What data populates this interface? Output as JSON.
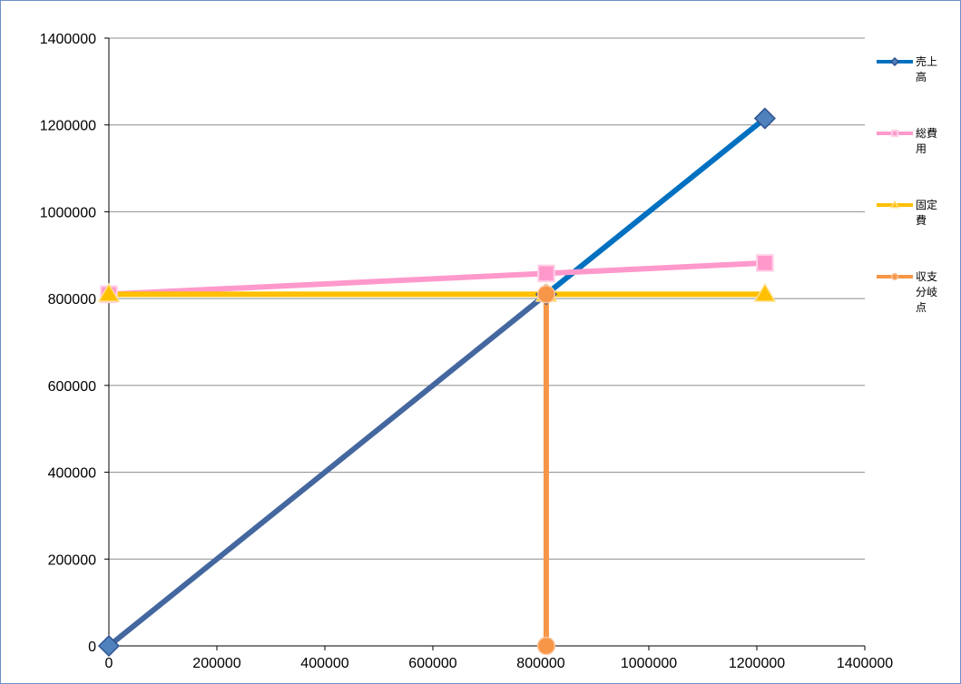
{
  "chart_data": {
    "type": "line",
    "xlim": [
      0,
      1400000
    ],
    "ylim": [
      0,
      1400000
    ],
    "x_ticks": [
      "0",
      "200000",
      "400000",
      "600000",
      "800000",
      "1000000",
      "1200000",
      "1400000"
    ],
    "y_ticks": [
      "0",
      "200000",
      "400000",
      "600000",
      "800000",
      "1000000",
      "1200000",
      "1400000"
    ],
    "grid": "horizontal",
    "legend_position": "right",
    "series": [
      {
        "name": "売上高",
        "marker": "diamond",
        "colors": {
          "start": "#44679f",
          "end": "#0070c0",
          "marker": "#4f81bd"
        },
        "points": [
          [
            0,
            0
          ],
          [
            810000,
            810000
          ],
          [
            1215000,
            1215000
          ]
        ]
      },
      {
        "name": "総費用",
        "marker": "square",
        "colors": {
          "start": "#ff99cc",
          "end": "#ff99cc",
          "marker": "#ff99cc"
        },
        "points": [
          [
            0,
            810000
          ],
          [
            810000,
            858000
          ],
          [
            1215000,
            882000
          ]
        ]
      },
      {
        "name": "固定費",
        "marker": "triangle",
        "colors": {
          "start": "#ffc000",
          "end": "#ffc000",
          "marker": "#ffc000"
        },
        "points": [
          [
            0,
            810000
          ],
          [
            810000,
            810000
          ],
          [
            1215000,
            810000
          ]
        ]
      },
      {
        "name": "収支分岐点",
        "marker": "circle",
        "colors": {
          "start": "#f79646",
          "end": "#f79646",
          "marker": "#f79646"
        },
        "points": [
          [
            810000,
            810000
          ],
          [
            810000,
            0
          ]
        ]
      }
    ]
  }
}
